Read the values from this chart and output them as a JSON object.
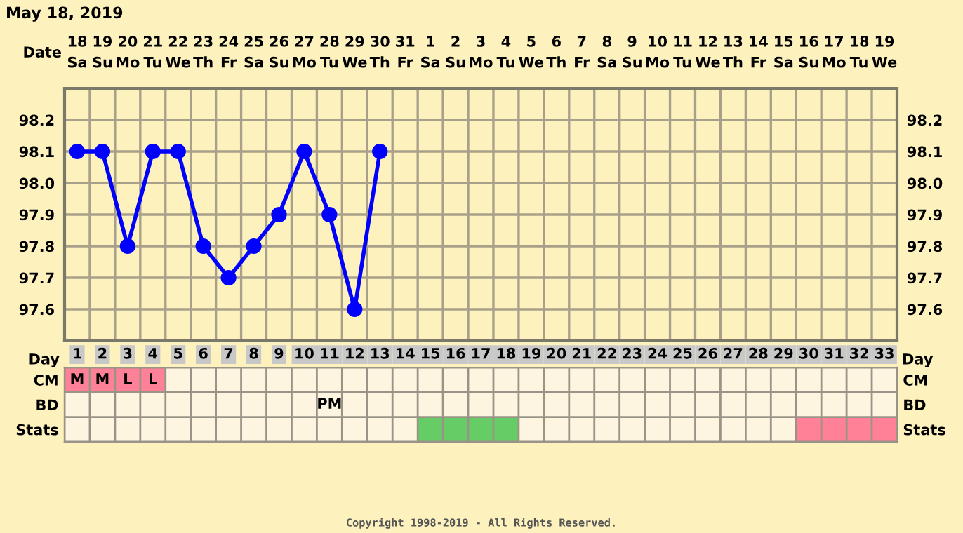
{
  "chart_data": [
    {
      "type": "line",
      "title": "May 18, 2019",
      "tick_labels": "y",
      "categories": [
        null,
        null,
        null,
        null,
        null,
        null,
        null,
        null,
        null,
        null,
        null,
        null,
        null,
        null,
        null,
        null,
        null,
        null,
        null,
        null,
        null,
        null,
        null,
        null,
        null,
        null,
        null,
        null,
        null,
        null,
        null,
        null,
        null
      ],
      "series": [
        {
          "color": "#0000ff",
          "values": [
            98.1,
            98.1,
            97.8,
            98.1,
            98.1,
            97.8,
            97.7,
            97.8,
            97.9,
            98.1,
            97.9,
            97.6,
            98.1,
            null,
            null,
            null,
            null,
            null,
            null,
            null,
            null,
            null,
            null,
            null,
            null,
            null,
            null,
            null,
            null,
            null,
            null,
            null,
            null
          ]
        }
      ],
      "ylim": [
        97.5,
        98.3
      ],
      "yticks": [
        97.6,
        97.7,
        97.8,
        97.9,
        {
          "value": 98.0,
          "label": "98.0"
        },
        98.1,
        98.2
      ],
      "y2lim": [
        97.5,
        98.3
      ],
      "y2ticks": [
        97.6,
        97.7,
        97.8,
        97.9,
        {
          "value": 98.0,
          "label": "98.0"
        },
        98.1,
        98.2
      ],
      "grid": true,
      "marker": "circle",
      "line_style": "solid",
      "annotations": [
        "Date",
        "18\nSa",
        "19\nSu",
        "20\nMo",
        "21\nTu",
        "22\nWe",
        "23\nTh",
        "24\nFr",
        "25\nSa",
        "26\nSu",
        "27\nMo",
        "28\nTu",
        "29\nWe",
        "30\nTh",
        "31\nFr",
        "1\nSa",
        "2\nSu",
        "3\nMo",
        "4\nTu",
        "5\nWe",
        "6\nTh",
        "7\nFr",
        "8\nSa",
        "9\nSu",
        "10\nMo",
        "11\nTu",
        "12\nWe",
        "13\nTh",
        "14\nFr",
        "15\nSa",
        "16\nSu",
        "17\nMo",
        "18\nTu",
        "19\nWe"
      ]
    },
    {
      "type": "heatmap",
      "xlabel": "Day",
      "categories": [
        "1",
        "2",
        "3",
        "4",
        "5",
        "6",
        "7",
        "8",
        "9",
        "10",
        "11",
        "12",
        "13",
        "14",
        "15",
        "16",
        "17",
        "18",
        "19",
        "20",
        "21",
        "22",
        "23",
        "24",
        "25",
        "26",
        "27",
        "28",
        "29",
        "30",
        "31",
        "32",
        "33"
      ],
      "y_categories": [
        "CM",
        "BD",
        "Stats"
      ],
      "y2_categories": [
        "CM",
        "BD",
        "Stats"
      ],
      "cells": [
        [
          null,
          null,
          null,
          null,
          null,
          null,
          null,
          null,
          null,
          null,
          null,
          null,
          null,
          null,
          null,
          null,
          null,
          null,
          null,
          null,
          null,
          null,
          null,
          null,
          null,
          null,
          null,
          null,
          null,
          null,
          null,
          null,
          null
        ],
        [
          null,
          null,
          null,
          null,
          null,
          null,
          null,
          null,
          null,
          null,
          null,
          null,
          null,
          null,
          null,
          null,
          null,
          null,
          null,
          null,
          null,
          null,
          null,
          null,
          null,
          null,
          null,
          null,
          null,
          null,
          null,
          null,
          null
        ],
        [
          null,
          null,
          null,
          null,
          null,
          null,
          null,
          null,
          null,
          null,
          null,
          null,
          null,
          null,
          null,
          null,
          null,
          null,
          null,
          null,
          null,
          null,
          null,
          null,
          null,
          null,
          null,
          null,
          null,
          null,
          null,
          null,
          null
        ]
      ],
      "cell_labels": [
        [
          "M",
          "M",
          "L",
          "L",
          null,
          null,
          null,
          null,
          null,
          null,
          null,
          null,
          null,
          null,
          null,
          null,
          null,
          null,
          null,
          null,
          null,
          null,
          null,
          null,
          null,
          null,
          null,
          null,
          null,
          null,
          null,
          null,
          null
        ],
        [
          null,
          null,
          null,
          null,
          null,
          null,
          null,
          null,
          null,
          null,
          "PM",
          null,
          null,
          null,
          null,
          null,
          null,
          null,
          null,
          null,
          null,
          null,
          null,
          null,
          null,
          null,
          null,
          null,
          null,
          null,
          null,
          null,
          null
        ],
        [
          null,
          null,
          null,
          null,
          null,
          null,
          null,
          null,
          null,
          null,
          null,
          null,
          null,
          null,
          null,
          null,
          null,
          null,
          null,
          null,
          null,
          null,
          null,
          null,
          null,
          null,
          null,
          null,
          null,
          null,
          null,
          null,
          null
        ]
      ],
      "annotations": [
        "Copyright 1998-2019 - All Rights Reserved."
      ]
    }
  ]
}
